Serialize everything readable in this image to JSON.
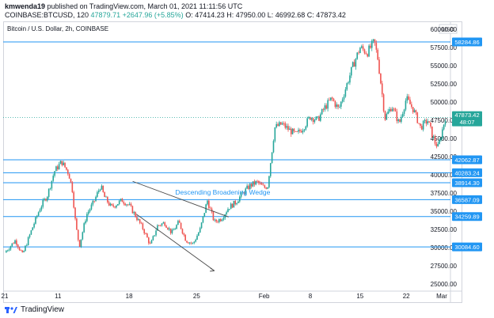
{
  "header": {
    "user": "kmwenda19",
    "published": "published on TradingView.com, March 01, 2021 11:11:56 UTC",
    "ticker_line": "COINBASE:BTCUSD, 120",
    "last": "47879.71",
    "change": "+2647.96 (+5.85%)",
    "ohlc": "O: 47414.23  H: 47950.00  L: 46992.68  C: 47873.42"
  },
  "footer": {
    "brand": "TradingView"
  },
  "chart_data": {
    "type": "candlestick",
    "title": "Bitcoin / U.S. Dollar, 2h, COINBASE",
    "currency": "USD",
    "x_ticks": [
      "21",
      "11",
      "18",
      "25",
      "Feb",
      "8",
      "15",
      "22",
      "Mar"
    ],
    "y_ticks": [
      "60000.00",
      "57500.00",
      "55000.00",
      "52500.00",
      "50000.00",
      "47500.00",
      "45000.00",
      "42500.00",
      "40000.00",
      "37500.00",
      "35000.00",
      "32500.00",
      "30000.00",
      "27500.00",
      "25000.00"
    ],
    "ylim": [
      24000,
      61000
    ],
    "last_price": "47873.42",
    "countdown": "48:07",
    "levels": [
      "58284.86",
      "42062.87",
      "40283.24",
      "38914.30",
      "36587.09",
      "34259.89",
      "30084.60"
    ],
    "annotation": "Descending Broadening Wedge",
    "price_path": [
      [
        0,
        29300
      ],
      [
        3,
        31000
      ],
      [
        5,
        29000
      ],
      [
        8,
        33000
      ],
      [
        10,
        35500
      ],
      [
        12,
        37200
      ],
      [
        14,
        40500
      ],
      [
        16,
        41800
      ],
      [
        18,
        40200
      ],
      [
        19,
        38000
      ],
      [
        20,
        33000
      ],
      [
        21,
        30200
      ],
      [
        23,
        34500
      ],
      [
        25,
        36200
      ],
      [
        27,
        38500
      ],
      [
        28,
        37000
      ],
      [
        30,
        35500
      ],
      [
        33,
        36500
      ],
      [
        35,
        35800
      ],
      [
        37,
        34200
      ],
      [
        39,
        32500
      ],
      [
        41,
        30300
      ],
      [
        43,
        33000
      ],
      [
        45,
        33400
      ],
      [
        47,
        32000
      ],
      [
        49,
        33500
      ],
      [
        51,
        31000
      ],
      [
        53,
        30500
      ],
      [
        55,
        32500
      ],
      [
        57,
        36500
      ],
      [
        59,
        33500
      ],
      [
        61,
        34000
      ],
      [
        63,
        35500
      ],
      [
        65,
        36200
      ],
      [
        67,
        37500
      ],
      [
        69,
        38500
      ],
      [
        71,
        39000
      ],
      [
        73,
        38200
      ],
      [
        74,
        38500
      ],
      [
        76,
        46500
      ],
      [
        78,
        47000
      ],
      [
        80,
        46200
      ],
      [
        82,
        45500
      ],
      [
        84,
        46500
      ],
      [
        86,
        48000
      ],
      [
        88,
        47500
      ],
      [
        90,
        49200
      ],
      [
        92,
        50500
      ],
      [
        94,
        49000
      ],
      [
        96,
        52000
      ],
      [
        98,
        55000
      ],
      [
        100,
        57500
      ],
      [
        102,
        56800
      ],
      [
        104,
        58300
      ],
      [
        105,
        56000
      ],
      [
        106,
        52000
      ],
      [
        107,
        47800
      ],
      [
        109,
        49500
      ],
      [
        111,
        47000
      ],
      [
        113,
        50500
      ],
      [
        115,
        49000
      ],
      [
        117,
        46500
      ],
      [
        119,
        47500
      ],
      [
        121,
        44500
      ],
      [
        122,
        43800
      ],
      [
        124,
        47900
      ]
    ],
    "x_max": 125
  }
}
